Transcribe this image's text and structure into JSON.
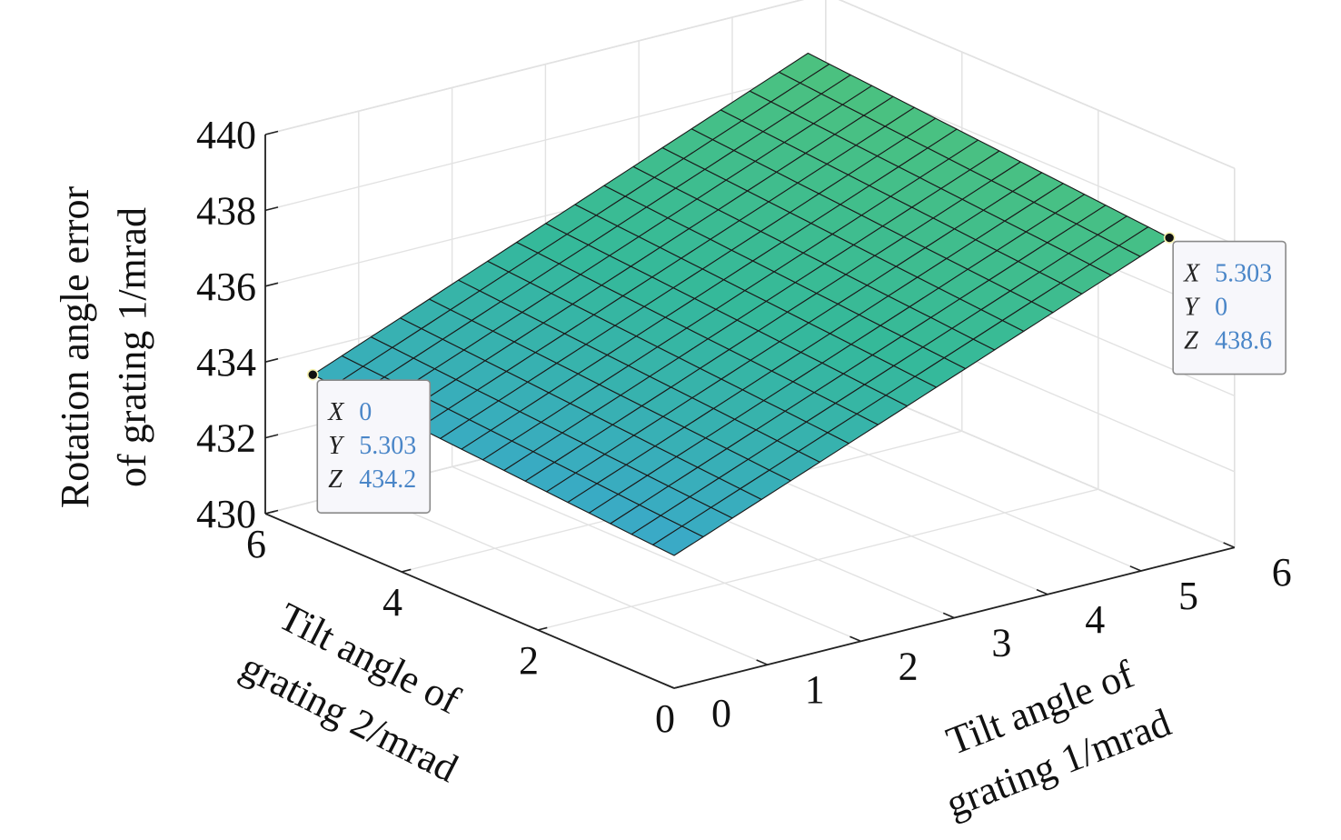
{
  "chart_data": {
    "type": "surface",
    "title": "",
    "xlabel_lines": [
      "Tilt angle of",
      "grating 1/mrad"
    ],
    "ylabel_lines": [
      "Tilt angle of",
      "grating 2/mrad"
    ],
    "zlabel_lines": [
      "Rotation angle error",
      "of grating 1/mrad"
    ],
    "xlim": [
      0,
      6
    ],
    "ylim": [
      0,
      6
    ],
    "zlim": [
      430,
      440
    ],
    "x_ticks": [
      "0",
      "1",
      "2",
      "3",
      "4",
      "5",
      "6"
    ],
    "y_ticks": [
      "0",
      "2",
      "4",
      "6"
    ],
    "z_ticks": [
      "430",
      "432",
      "434",
      "436",
      "438",
      "440"
    ],
    "grid": true,
    "surface": {
      "x_range": [
        0,
        5.303
      ],
      "y_range": [
        0,
        5.303
      ],
      "grid_divisions": 17,
      "z_corners": {
        "x0_y0": 433.5,
        "x1_y0": 438.6,
        "x0_y1": 434.2,
        "x1_y1": 439.4
      },
      "colors": [
        "#3aa9c9",
        "#35b99a",
        "#4dc27e"
      ],
      "edge_color": "#1a1a1a"
    },
    "datatips": [
      {
        "labels": [
          "X",
          "Y",
          "Z"
        ],
        "values": [
          "0",
          "5.303",
          "434.2"
        ],
        "point": [
          0,
          5.303,
          434.2
        ]
      },
      {
        "labels": [
          "X",
          "Y",
          "Z"
        ],
        "values": [
          "5.303",
          "0",
          "438.6"
        ],
        "point": [
          5.303,
          0,
          438.6
        ]
      }
    ],
    "value_color": "#4a86c8"
  }
}
